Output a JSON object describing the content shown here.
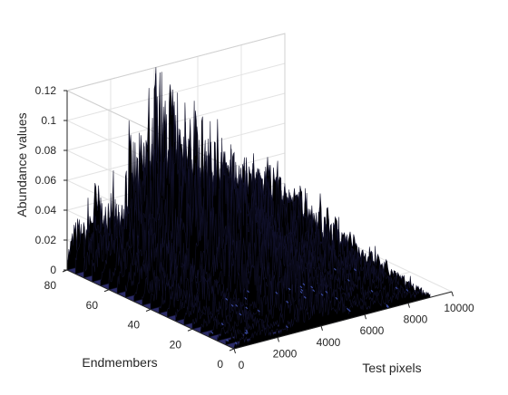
{
  "chart_data": {
    "type": "surface",
    "xlabel": "Test pixels",
    "ylabel": "Endmembers",
    "zlabel": "Abundance values",
    "xlim": [
      0,
      10000
    ],
    "ylim": [
      0,
      80
    ],
    "zlim": [
      0,
      0.12
    ],
    "xticks": [
      0,
      2000,
      4000,
      6000,
      8000,
      10000
    ],
    "yticks": [
      0,
      20,
      40,
      60,
      80
    ],
    "zticks": [
      0,
      0.02,
      0.04,
      0.06,
      0.08,
      0.1,
      0.12
    ],
    "xtick_labels": [
      "0",
      "2000",
      "4000",
      "6000",
      "8000",
      "10000"
    ],
    "ytick_labels": [
      "0",
      "20",
      "40",
      "60",
      "80"
    ],
    "ztick_labels": [
      "0",
      "0.02",
      "0.04",
      "0.06",
      "0.08",
      "0.1",
      "0.12"
    ],
    "grid": true,
    "colors": {
      "surface": "#000000",
      "floor": "#2b2b66",
      "floor_accent": "#3a4aa0",
      "grid": "#e3e3e3",
      "axis": "#262626"
    },
    "ridge_profile": {
      "x": [
        0,
        250,
        500,
        750,
        1000,
        1250,
        1500,
        1750,
        2000,
        2250,
        2500,
        2750,
        3000,
        3250,
        3500,
        3750,
        4000,
        4250,
        4500,
        4750,
        5000,
        5250,
        5500,
        5750,
        6000,
        6250,
        6500,
        6750,
        7000,
        7250,
        7500,
        7750,
        8000,
        8250,
        8500,
        8750,
        9000
      ],
      "max_abundance": [
        0.012,
        0.028,
        0.035,
        0.03,
        0.04,
        0.058,
        0.052,
        0.036,
        0.028,
        0.03,
        0.048,
        0.075,
        0.082,
        0.078,
        0.085,
        0.105,
        0.122,
        0.088,
        0.075,
        0.07,
        0.078,
        0.055,
        0.06,
        0.045,
        0.05,
        0.04,
        0.068,
        0.035,
        0.042,
        0.05,
        0.045,
        0.055,
        0.04,
        0.035,
        0.045,
        0.025,
        0.015
      ]
    }
  }
}
